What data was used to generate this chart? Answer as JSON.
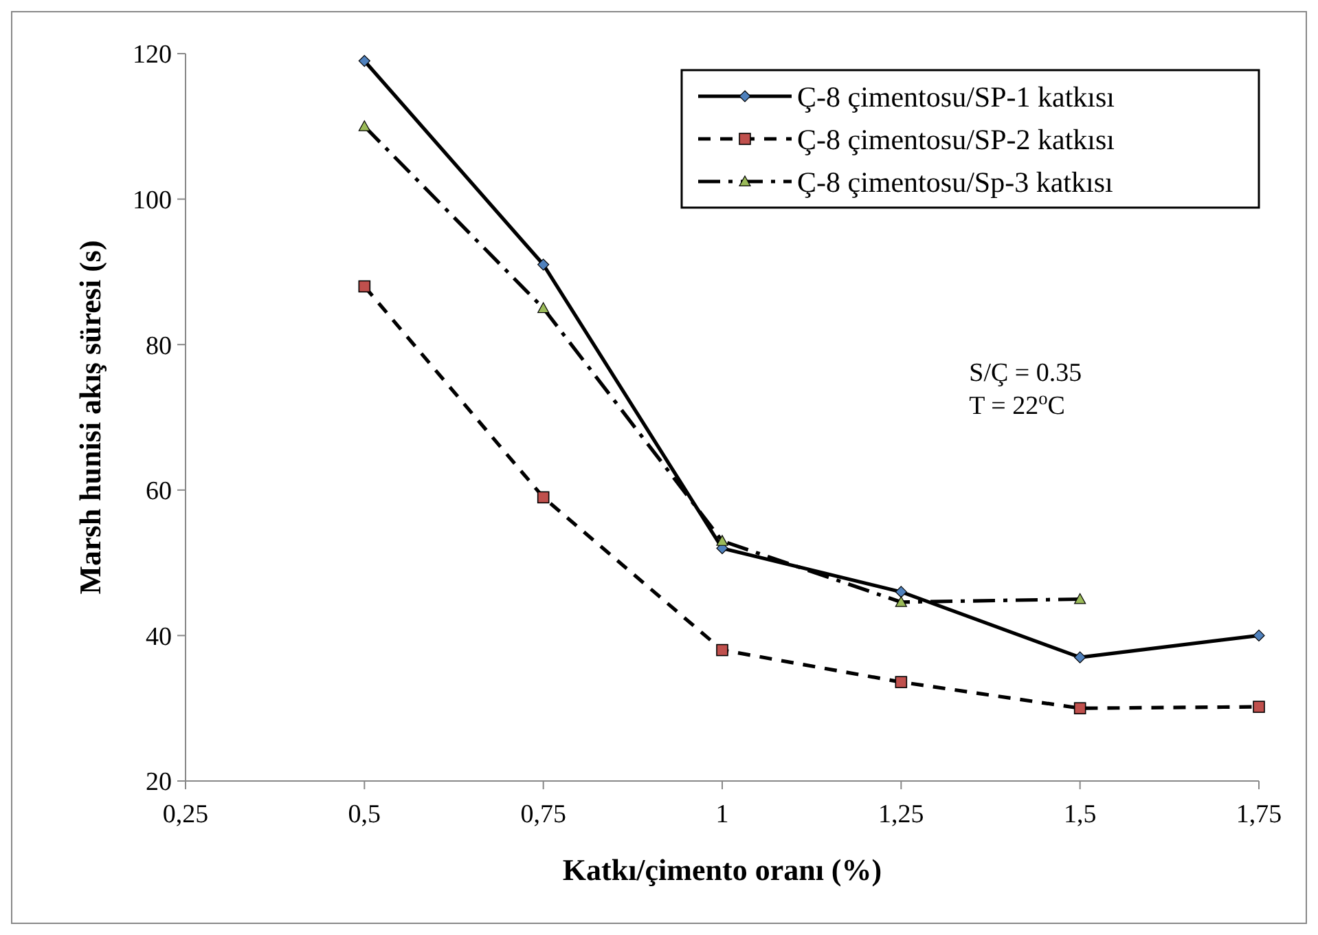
{
  "chart_data": {
    "type": "line",
    "xlabel": "Katkı/çimento oranı (%)",
    "ylabel": "Marsh hunisi akış süresi (s)",
    "x": [
      0.5,
      0.75,
      1,
      1.25,
      1.5,
      1.75
    ],
    "xlim": [
      0.25,
      1.75
    ],
    "xticks": [
      {
        "value": 0.25,
        "label": "0,25"
      },
      {
        "value": 0.5,
        "label": "0,5"
      },
      {
        "value": 0.75,
        "label": "0,75"
      },
      1,
      {
        "value": 1.25,
        "label": "1,25"
      },
      {
        "value": 1.5,
        "label": "1,5"
      },
      {
        "value": 1.75,
        "label": "1,75"
      }
    ],
    "ylim": [
      20,
      120
    ],
    "yticks": [
      20,
      40,
      60,
      80,
      100,
      120
    ],
    "grid": false,
    "legend": "top right",
    "series": [
      {
        "name": "Ç-8 çimentosu/SP-1 katkısı",
        "color": "#000000",
        "colors": [
          "#4f81bd",
          "#4f81bd",
          "#4f81bd",
          "#4f81bd",
          "#4f81bd",
          "#4f81bd"
        ],
        "marker": "diamond",
        "line_style": "solid",
        "values": [
          119,
          91,
          52,
          46,
          37,
          40
        ]
      },
      {
        "name": "Ç-8 çimentosu/SP-2 katkısı",
        "color": "#000000",
        "colors": [
          "#c0504d",
          "#c0504d",
          "#c0504d",
          "#c0504d",
          "#c0504d",
          "#c0504d"
        ],
        "marker": "square",
        "line_style": "dashed",
        "values": [
          88,
          59,
          38,
          33.6,
          30,
          30.2
        ]
      },
      {
        "name": "Ç-8 çimentosu/Sp-3 katkısı",
        "color": "#000000",
        "colors": [
          "#9bbb59",
          "#9bbb59",
          "#9bbb59",
          "#9bbb59",
          "#9bbb59",
          null
        ],
        "marker": "triangle",
        "line_style": "dashdot",
        "values": [
          110,
          85,
          53,
          44.6,
          45,
          null
        ]
      }
    ],
    "annotations": [
      "S/Ç = 0.35",
      "T = 22$^{o}$C"
    ]
  }
}
